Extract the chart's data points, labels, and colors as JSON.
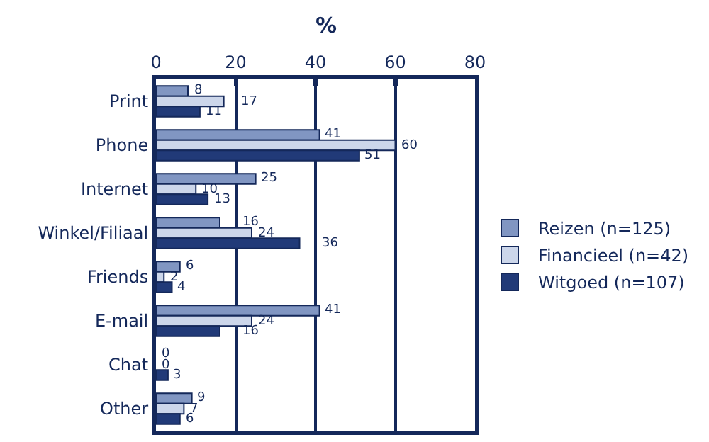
{
  "chart_data": {
    "type": "bar",
    "orientation": "horizontal",
    "title": "%",
    "categories": [
      "Print",
      "Phone",
      "Internet",
      "Winkel/Filiaal",
      "Friends",
      "E-mail",
      "Chat",
      "Other"
    ],
    "series": [
      {
        "name": "Reizen (n=125)",
        "color": "#8196c2",
        "values": [
          8,
          41,
          25,
          16,
          6,
          41,
          0,
          9
        ]
      },
      {
        "name": "Financieel (n=42)",
        "color": "#ccd6ea",
        "values": [
          17,
          60,
          10,
          24,
          2,
          24,
          0,
          7
        ]
      },
      {
        "name": "Witgoed (n=107)",
        "color": "#213a78",
        "values": [
          11,
          51,
          13,
          36,
          4,
          16,
          3,
          6
        ]
      }
    ],
    "xlim": [
      0,
      80
    ],
    "xticks": [
      0,
      20,
      40,
      60,
      80
    ],
    "grid": "x",
    "legend": "right",
    "data_labels": true
  }
}
